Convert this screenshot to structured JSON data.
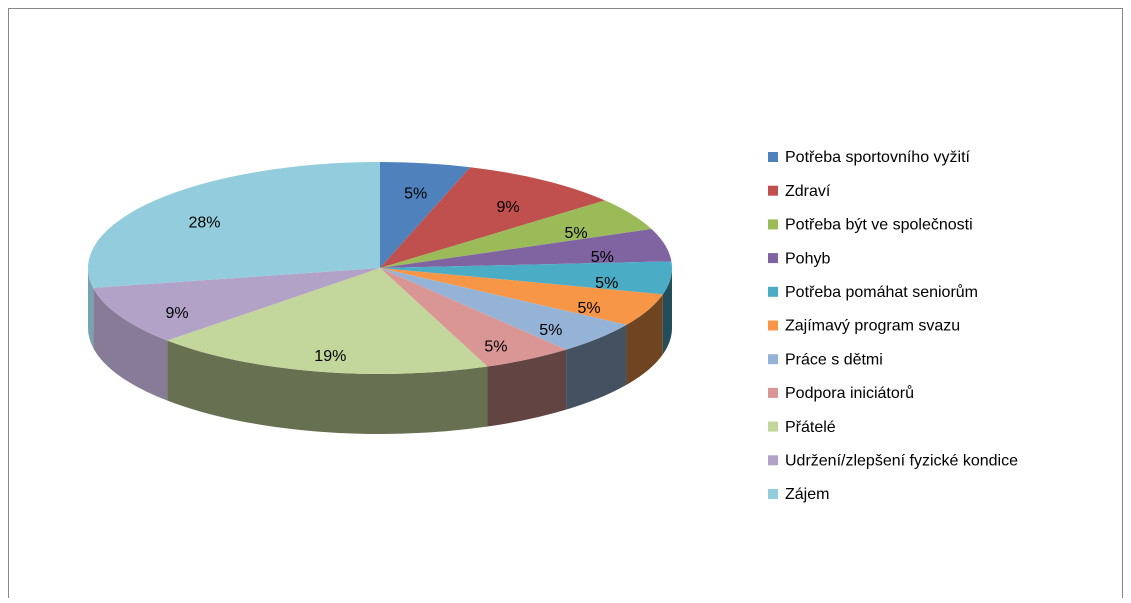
{
  "chart_data": {
    "type": "pie",
    "categories": [
      "Potřeba sportovního vyžití",
      "Zdraví",
      "Potřeba být ve společnosti",
      "Pohyb",
      "Potřeba pomáhat seniorům",
      "Zajímavý program svazu",
      "Práce s dětmi",
      "Podpora iniciátorů",
      "Přátelé",
      "Udržení/zlepšení fyzické kondice",
      "Zájem"
    ],
    "values": [
      5,
      9,
      5,
      5,
      5,
      5,
      5,
      5,
      19,
      9,
      28
    ],
    "value_labels": [
      "5%",
      "9%",
      "5%",
      "5%",
      "5%",
      "5%",
      "5%",
      "5%",
      "19%",
      "9%",
      "28%"
    ],
    "colors": [
      "#4f81bd",
      "#c0504d",
      "#9bbb59",
      "#8064a2",
      "#4bacc6",
      "#f79646",
      "#95b3d7",
      "#da9694",
      "#c3d69b",
      "#b3a2c7",
      "#93cddd"
    ],
    "legend": "right"
  }
}
